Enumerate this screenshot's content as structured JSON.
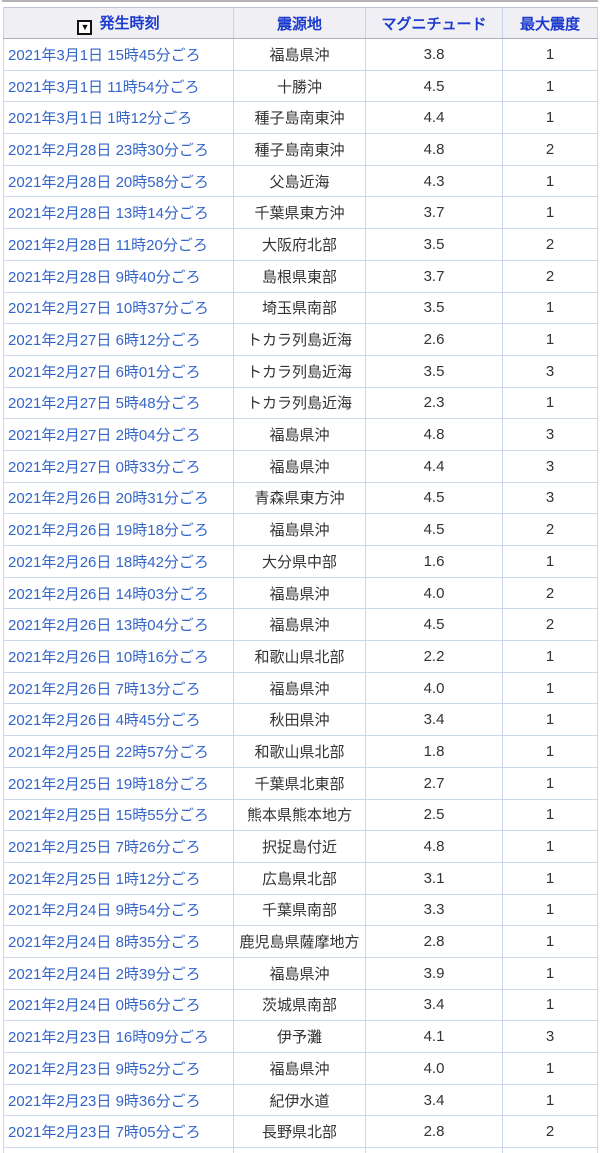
{
  "table": {
    "columns": [
      {
        "key": "time",
        "label": "発生時刻"
      },
      {
        "key": "epicenter",
        "label": "震源地"
      },
      {
        "key": "magnitude",
        "label": "マグニチュード"
      },
      {
        "key": "intensity",
        "label": "最大震度"
      }
    ],
    "sort": {
      "column": "発生時刻",
      "direction": "descending",
      "icon": "▼"
    },
    "rows": [
      {
        "time": "2021年3月1日 15時45分ごろ",
        "epicenter": "福島県沖",
        "magnitude": "3.8",
        "intensity": "1"
      },
      {
        "time": "2021年3月1日 11時54分ごろ",
        "epicenter": "十勝沖",
        "magnitude": "4.5",
        "intensity": "1"
      },
      {
        "time": "2021年3月1日 1時12分ごろ",
        "epicenter": "種子島南東沖",
        "magnitude": "4.4",
        "intensity": "1"
      },
      {
        "time": "2021年2月28日 23時30分ごろ",
        "epicenter": "種子島南東沖",
        "magnitude": "4.8",
        "intensity": "2"
      },
      {
        "time": "2021年2月28日 20時58分ごろ",
        "epicenter": "父島近海",
        "magnitude": "4.3",
        "intensity": "1"
      },
      {
        "time": "2021年2月28日 13時14分ごろ",
        "epicenter": "千葉県東方沖",
        "magnitude": "3.7",
        "intensity": "1"
      },
      {
        "time": "2021年2月28日 11時20分ごろ",
        "epicenter": "大阪府北部",
        "magnitude": "3.5",
        "intensity": "2"
      },
      {
        "time": "2021年2月28日 9時40分ごろ",
        "epicenter": "島根県東部",
        "magnitude": "3.7",
        "intensity": "2"
      },
      {
        "time": "2021年2月27日 10時37分ごろ",
        "epicenter": "埼玉県南部",
        "magnitude": "3.5",
        "intensity": "1"
      },
      {
        "time": "2021年2月27日 6時12分ごろ",
        "epicenter": "トカラ列島近海",
        "magnitude": "2.6",
        "intensity": "1"
      },
      {
        "time": "2021年2月27日 6時01分ごろ",
        "epicenter": "トカラ列島近海",
        "magnitude": "3.5",
        "intensity": "3"
      },
      {
        "time": "2021年2月27日 5時48分ごろ",
        "epicenter": "トカラ列島近海",
        "magnitude": "2.3",
        "intensity": "1"
      },
      {
        "time": "2021年2月27日 2時04分ごろ",
        "epicenter": "福島県沖",
        "magnitude": "4.8",
        "intensity": "3"
      },
      {
        "time": "2021年2月27日 0時33分ごろ",
        "epicenter": "福島県沖",
        "magnitude": "4.4",
        "intensity": "3"
      },
      {
        "time": "2021年2月26日 20時31分ごろ",
        "epicenter": "青森県東方沖",
        "magnitude": "4.5",
        "intensity": "3"
      },
      {
        "time": "2021年2月26日 19時18分ごろ",
        "epicenter": "福島県沖",
        "magnitude": "4.5",
        "intensity": "2"
      },
      {
        "time": "2021年2月26日 18時42分ごろ",
        "epicenter": "大分県中部",
        "magnitude": "1.6",
        "intensity": "1"
      },
      {
        "time": "2021年2月26日 14時03分ごろ",
        "epicenter": "福島県沖",
        "magnitude": "4.0",
        "intensity": "2"
      },
      {
        "time": "2021年2月26日 13時04分ごろ",
        "epicenter": "福島県沖",
        "magnitude": "4.5",
        "intensity": "2"
      },
      {
        "time": "2021年2月26日 10時16分ごろ",
        "epicenter": "和歌山県北部",
        "magnitude": "2.2",
        "intensity": "1"
      },
      {
        "time": "2021年2月26日 7時13分ごろ",
        "epicenter": "福島県沖",
        "magnitude": "4.0",
        "intensity": "1"
      },
      {
        "time": "2021年2月26日 4時45分ごろ",
        "epicenter": "秋田県沖",
        "magnitude": "3.4",
        "intensity": "1"
      },
      {
        "time": "2021年2月25日 22時57分ごろ",
        "epicenter": "和歌山県北部",
        "magnitude": "1.8",
        "intensity": "1"
      },
      {
        "time": "2021年2月25日 19時18分ごろ",
        "epicenter": "千葉県北東部",
        "magnitude": "2.7",
        "intensity": "1"
      },
      {
        "time": "2021年2月25日 15時55分ごろ",
        "epicenter": "熊本県熊本地方",
        "magnitude": "2.5",
        "intensity": "1"
      },
      {
        "time": "2021年2月25日 7時26分ごろ",
        "epicenter": "択捉島付近",
        "magnitude": "4.8",
        "intensity": "1"
      },
      {
        "time": "2021年2月25日 1時12分ごろ",
        "epicenter": "広島県北部",
        "magnitude": "3.1",
        "intensity": "1"
      },
      {
        "time": "2021年2月24日 9時54分ごろ",
        "epicenter": "千葉県南部",
        "magnitude": "3.3",
        "intensity": "1"
      },
      {
        "time": "2021年2月24日 8時35分ごろ",
        "epicenter": "鹿児島県薩摩地方",
        "magnitude": "2.8",
        "intensity": "1"
      },
      {
        "time": "2021年2月24日 2時39分ごろ",
        "epicenter": "福島県沖",
        "magnitude": "3.9",
        "intensity": "1"
      },
      {
        "time": "2021年2月24日 0時56分ごろ",
        "epicenter": "茨城県南部",
        "magnitude": "3.4",
        "intensity": "1"
      },
      {
        "time": "2021年2月23日 16時09分ごろ",
        "epicenter": "伊予灘",
        "magnitude": "4.1",
        "intensity": "3"
      },
      {
        "time": "2021年2月23日 9時52分ごろ",
        "epicenter": "福島県沖",
        "magnitude": "4.0",
        "intensity": "1"
      },
      {
        "time": "2021年2月23日 9時36分ごろ",
        "epicenter": "紀伊水道",
        "magnitude": "3.4",
        "intensity": "1"
      },
      {
        "time": "2021年2月23日 7時05分ごろ",
        "epicenter": "長野県北部",
        "magnitude": "2.8",
        "intensity": "2"
      }
    ]
  },
  "colors": {
    "header_text": "#1d3bce",
    "header_background": "#f0f0f4",
    "link_text": "#3465c8",
    "body_text": "#333333",
    "cell_border": "#ccd9ec",
    "outer_border": "#b9c1d8"
  }
}
